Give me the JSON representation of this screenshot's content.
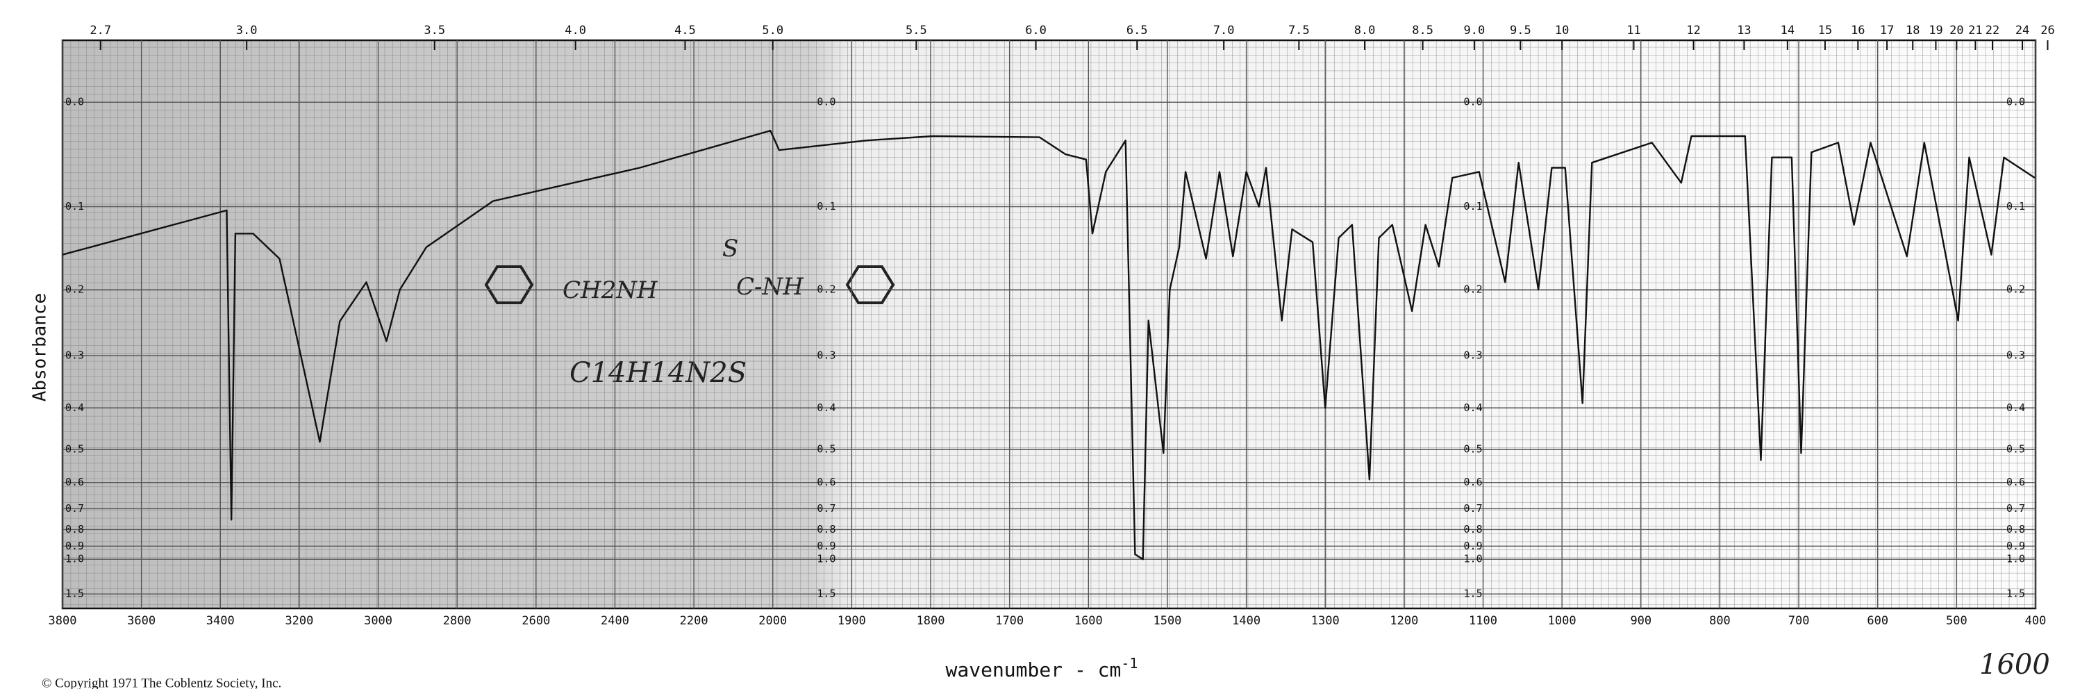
{
  "chart_data": {
    "type": "line",
    "y_label": "Absorbance",
    "x_label": "wavenumber - cm",
    "x_label_superscript": "-1",
    "copyright": "© Copyright 1971  The Coblentz Society, Inc.",
    "annotations": [
      "CH2NH",
      "S",
      "C-NH",
      "C14H14N2S",
      "1600"
    ],
    "y_scale": "absorbance",
    "x_break": 2000,
    "x_break_expansion": 2,
    "xlim": [
      3800,
      400
    ],
    "ylim": [
      -0.05,
      2.5
    ],
    "grid": true,
    "color": "#111111",
    "xticks": [
      3800,
      3600,
      3400,
      3200,
      3000,
      2800,
      2600,
      2400,
      2200,
      2000,
      1900,
      1800,
      1700,
      1600,
      1500,
      1400,
      1300,
      1200,
      1100,
      1000,
      900,
      800,
      700,
      600,
      500,
      400
    ],
    "x2ticks": [
      2.7,
      {
        "value": 3,
        "label": "3.0"
      },
      3.5,
      {
        "value": 4,
        "label": "4.0"
      },
      4.5,
      {
        "value": 5,
        "label": "5.0"
      },
      5.5,
      {
        "value": 6,
        "label": "6.0"
      },
      6.5,
      {
        "value": 7,
        "label": "7.0"
      },
      7.5,
      {
        "value": 8,
        "label": "8.0"
      },
      8.5,
      {
        "value": 9,
        "label": "9.0"
      },
      9.5,
      10,
      11,
      12,
      13,
      14,
      15,
      16,
      17,
      18,
      19,
      20,
      21,
      22,
      24,
      26
    ],
    "yticks": [
      {
        "value": 0,
        "label": "0.0"
      },
      0.1,
      0.2,
      0.3,
      0.4,
      0.5,
      0.6,
      0.7,
      0.8,
      0.9,
      {
        "value": 1,
        "label": "1.0"
      },
      1.5
    ],
    "x": [
      3800,
      3384,
      3372,
      3362,
      3317,
      3250,
      3148,
      3097,
      3030,
      2979,
      2945,
      2878,
      2709,
      2337,
      2006,
      1992,
      1882,
      1797,
      1662,
      1629,
      1603,
      1595,
      1578,
      1553,
      1541,
      1531,
      1524,
      1505,
      1497,
      1485,
      1477,
      1451,
      1434,
      1417,
      1400,
      1384,
      1375,
      1355,
      1342,
      1316,
      1300,
      1283,
      1266,
      1244,
      1232,
      1215,
      1190,
      1173,
      1156,
      1139,
      1105,
      1072,
      1055,
      1030,
      1013,
      996,
      974,
      962,
      886,
      849,
      836,
      768,
      748,
      734,
      709,
      697,
      684,
      650,
      630,
      609,
      563,
      541,
      498,
      484,
      456,
      440,
      401
    ],
    "values": [
      0.155,
      0.104,
      0.75,
      0.13,
      0.13,
      0.16,
      0.48,
      0.245,
      0.19,
      0.276,
      0.2,
      0.146,
      0.094,
      0.06,
      0.025,
      0.043,
      0.034,
      0.03,
      0.031,
      0.047,
      0.052,
      0.13,
      0.064,
      0.034,
      0.96,
      1.0,
      0.244,
      0.51,
      0.2,
      0.146,
      0.064,
      0.16,
      0.064,
      0.157,
      0.064,
      0.1,
      0.06,
      0.244,
      0.125,
      0.14,
      0.4,
      0.135,
      0.12,
      0.59,
      0.135,
      0.12,
      0.23,
      0.12,
      0.17,
      0.07,
      0.064,
      0.19,
      0.055,
      0.2,
      0.06,
      0.06,
      0.39,
      0.055,
      0.036,
      0.075,
      0.03,
      0.03,
      0.53,
      0.05,
      0.05,
      0.51,
      0.045,
      0.036,
      0.12,
      0.036,
      0.157,
      0.036,
      0.244,
      0.05,
      0.155,
      0.05,
      0.07
    ]
  }
}
